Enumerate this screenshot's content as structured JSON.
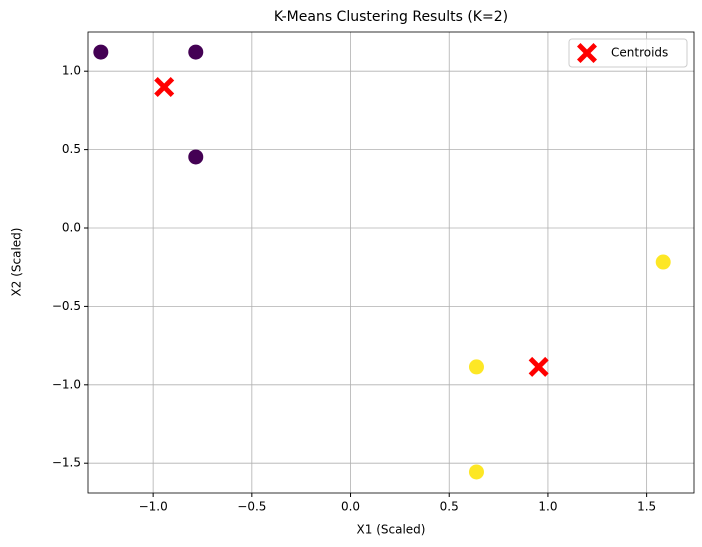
{
  "chart_data": {
    "type": "scatter",
    "title": "K-Means Clustering Results (K=2)",
    "x_label": "X1 (Scaled)",
    "y_label": "X2 (Scaled)",
    "xlim": [
      -1.33,
      1.74
    ],
    "ylim": [
      -1.69,
      1.25
    ],
    "xticks": [
      {
        "value": -1.0,
        "label": "−1.0"
      },
      {
        "value": -0.5,
        "label": "−0.5"
      },
      {
        "value": 0.0,
        "label": "0.0"
      },
      {
        "value": 0.5,
        "label": "0.5"
      },
      {
        "value": 1.0,
        "label": "1.0"
      },
      {
        "value": 1.5,
        "label": "1.5"
      }
    ],
    "yticks": [
      {
        "value": -1.5,
        "label": "−1.5"
      },
      {
        "value": -1.0,
        "label": "−1.0"
      },
      {
        "value": -0.5,
        "label": "−0.5"
      },
      {
        "value": 0.0,
        "label": "0.0"
      },
      {
        "value": 0.5,
        "label": "0.5"
      },
      {
        "value": 1.0,
        "label": "1.0"
      }
    ],
    "grid": true,
    "legend": "upper right",
    "series": [
      {
        "color": "#440154",
        "marker": "circle",
        "x": [
          -1.265,
          -0.784,
          -0.784
        ],
        "values": [
          1.122,
          1.122,
          0.453
        ]
      },
      {
        "color": "#fde725",
        "marker": "circle",
        "x": [
          1.584,
          0.638,
          0.638
        ],
        "values": [
          -0.217,
          -0.886,
          -1.556
        ]
      },
      {
        "name": "Centroids",
        "color": "#ff0000",
        "marker": "x",
        "x": [
          -0.944,
          0.953
        ],
        "values": [
          0.899,
          -0.886
        ]
      }
    ]
  }
}
